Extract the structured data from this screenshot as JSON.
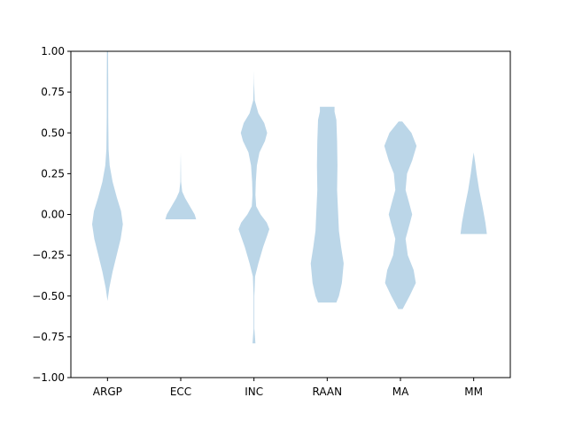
{
  "chart_data": {
    "type": "violin",
    "title": "",
    "xlabel": "",
    "ylabel": "",
    "ylim": [
      -1.0,
      1.0
    ],
    "yticks": [
      "1.00",
      "0.75",
      "0.50",
      "0.25",
      "0.00",
      "−0.25",
      "−0.50",
      "−0.75",
      "−1.00"
    ],
    "ytick_values": [
      1.0,
      0.75,
      0.5,
      0.25,
      0.0,
      -0.25,
      -0.5,
      -0.75,
      -1.0
    ],
    "categories": [
      "ARGP",
      "ECC",
      "INC",
      "RAAN",
      "MA",
      "MM"
    ],
    "grid": false,
    "fill_color": "#1f77b4",
    "fill_opacity": 0.3,
    "violins": [
      {
        "name": "ARGP",
        "min": -0.53,
        "max": 1.0,
        "profile": [
          [
            -0.53,
            0.0
          ],
          [
            -0.45,
            0.05
          ],
          [
            -0.35,
            0.14
          ],
          [
            -0.25,
            0.25
          ],
          [
            -0.15,
            0.36
          ],
          [
            -0.06,
            0.42
          ],
          [
            0.02,
            0.37
          ],
          [
            0.1,
            0.26
          ],
          [
            0.2,
            0.14
          ],
          [
            0.3,
            0.06
          ],
          [
            0.4,
            0.03
          ],
          [
            0.6,
            0.02
          ],
          [
            0.8,
            0.02
          ],
          [
            1.0,
            0.015
          ]
        ]
      },
      {
        "name": "ECC",
        "min": -0.03,
        "max": 0.38,
        "profile": [
          [
            -0.03,
            0.42
          ],
          [
            0.0,
            0.38
          ],
          [
            0.05,
            0.25
          ],
          [
            0.1,
            0.12
          ],
          [
            0.14,
            0.04
          ],
          [
            0.2,
            0.01
          ],
          [
            0.3,
            0.005
          ],
          [
            0.38,
            0.0
          ]
        ]
      },
      {
        "name": "INC",
        "min": -0.79,
        "max": 0.88,
        "profile": [
          [
            -0.79,
            0.04
          ],
          [
            -0.7,
            0.01
          ],
          [
            -0.5,
            0.01
          ],
          [
            -0.38,
            0.03
          ],
          [
            -0.3,
            0.12
          ],
          [
            -0.2,
            0.25
          ],
          [
            -0.13,
            0.36
          ],
          [
            -0.09,
            0.42
          ],
          [
            -0.05,
            0.35
          ],
          [
            0.0,
            0.18
          ],
          [
            0.05,
            0.06
          ],
          [
            0.12,
            0.04
          ],
          [
            0.2,
            0.05
          ],
          [
            0.3,
            0.08
          ],
          [
            0.38,
            0.15
          ],
          [
            0.45,
            0.3
          ],
          [
            0.5,
            0.36
          ],
          [
            0.56,
            0.28
          ],
          [
            0.62,
            0.12
          ],
          [
            0.7,
            0.02
          ],
          [
            0.8,
            0.005
          ],
          [
            0.88,
            0.0
          ]
        ]
      },
      {
        "name": "RAAN",
        "min": -0.54,
        "max": 0.66,
        "profile": [
          [
            -0.54,
            0.25
          ],
          [
            -0.5,
            0.32
          ],
          [
            -0.42,
            0.4
          ],
          [
            -0.3,
            0.45
          ],
          [
            -0.2,
            0.38
          ],
          [
            -0.1,
            0.32
          ],
          [
            0.0,
            0.3
          ],
          [
            0.15,
            0.27
          ],
          [
            0.3,
            0.28
          ],
          [
            0.45,
            0.27
          ],
          [
            0.58,
            0.25
          ],
          [
            0.63,
            0.2
          ],
          [
            0.66,
            0.2
          ]
        ]
      },
      {
        "name": "MA",
        "min": -0.58,
        "max": 0.57,
        "profile": [
          [
            -0.58,
            0.06
          ],
          [
            -0.5,
            0.25
          ],
          [
            -0.42,
            0.42
          ],
          [
            -0.34,
            0.36
          ],
          [
            -0.25,
            0.2
          ],
          [
            -0.15,
            0.14
          ],
          [
            -0.06,
            0.25
          ],
          [
            0.0,
            0.32
          ],
          [
            0.06,
            0.25
          ],
          [
            0.15,
            0.14
          ],
          [
            0.25,
            0.18
          ],
          [
            0.33,
            0.32
          ],
          [
            0.42,
            0.44
          ],
          [
            0.5,
            0.3
          ],
          [
            0.57,
            0.05
          ]
        ]
      },
      {
        "name": "MM",
        "min": -0.12,
        "max": 0.38,
        "profile": [
          [
            -0.12,
            0.36
          ],
          [
            -0.05,
            0.32
          ],
          [
            0.05,
            0.24
          ],
          [
            0.15,
            0.15
          ],
          [
            0.25,
            0.08
          ],
          [
            0.32,
            0.04
          ],
          [
            0.38,
            0.0
          ]
        ]
      }
    ]
  }
}
